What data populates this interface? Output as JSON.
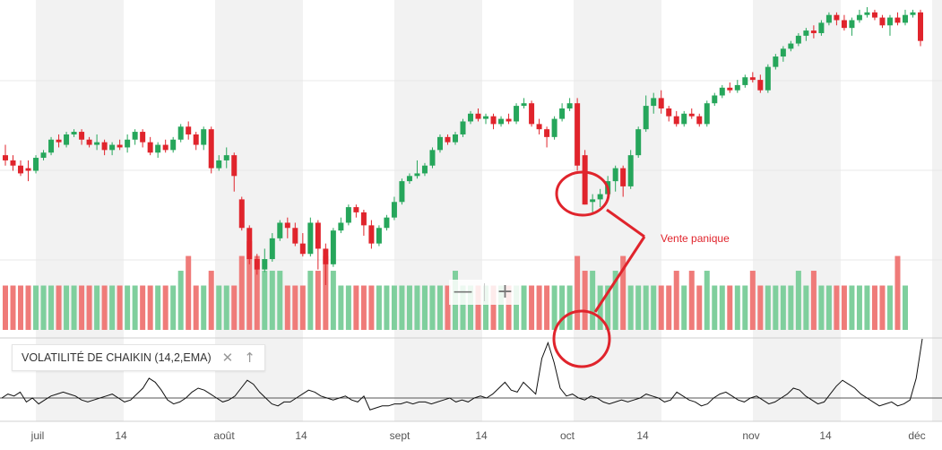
{
  "colors": {
    "up": "#26a65b",
    "down": "#e0242c",
    "vol_up": "#7fcf9d",
    "vol_down": "#ef7b79",
    "annotation": "#e0242c",
    "band": "#f2f2f2",
    "line": "#111111"
  },
  "zoom": {
    "minus_label": "—",
    "plus_label": "+",
    "minus_icon": "minus-icon",
    "plus_icon": "plus-icon"
  },
  "indicator": {
    "label": "VOLATILITÉ DE CHAIKIN (14,2,EMA)",
    "close_icon": "close-icon",
    "up_icon": "arrow-up-icon"
  },
  "annotation": {
    "text": "Vente panique"
  },
  "chart_data": [
    {
      "type": "candlestick",
      "x_labels": [
        "juil",
        "14",
        "août",
        "14",
        "sept",
        "14",
        "oct",
        "14",
        "nov",
        "14",
        "déc"
      ],
      "candles": [
        [
          62,
          60,
          66,
          58
        ],
        [
          60,
          58,
          62,
          56
        ],
        [
          58,
          55,
          60,
          54
        ],
        [
          57,
          56,
          60,
          52
        ],
        [
          56,
          61,
          62,
          55
        ],
        [
          61,
          63,
          64,
          60
        ],
        [
          63,
          68,
          69,
          62
        ],
        [
          68,
          67,
          70,
          65
        ],
        [
          66,
          70,
          71,
          65
        ],
        [
          70,
          71,
          72,
          69
        ],
        [
          71,
          68,
          72,
          66
        ],
        [
          68,
          66,
          69,
          65
        ],
        [
          66,
          67,
          70,
          64
        ],
        [
          67,
          64,
          68,
          62
        ],
        [
          64,
          66,
          67,
          62
        ],
        [
          66,
          65,
          68,
          64
        ],
        [
          65,
          68,
          70,
          63
        ],
        [
          68,
          71,
          72,
          66
        ],
        [
          71,
          67,
          72,
          65
        ],
        [
          67,
          63,
          69,
          62
        ],
        [
          63,
          66,
          67,
          61
        ],
        [
          66,
          64,
          68,
          63
        ],
        [
          64,
          68,
          69,
          63
        ],
        [
          68,
          73,
          74,
          67
        ],
        [
          73,
          70,
          75,
          68
        ],
        [
          70,
          66,
          71,
          64
        ],
        [
          66,
          72,
          73,
          64
        ],
        [
          72,
          57,
          73,
          55
        ],
        [
          57,
          60,
          62,
          56
        ],
        [
          60,
          62,
          65,
          57
        ],
        [
          62,
          54,
          63,
          48
        ],
        [
          45,
          34,
          46,
          33
        ],
        [
          34,
          22,
          35,
          20
        ],
        [
          22,
          18,
          24,
          16
        ],
        [
          18,
          22,
          26,
          17
        ],
        [
          22,
          30,
          32,
          21
        ],
        [
          30,
          36,
          37,
          29
        ],
        [
          36,
          34,
          38,
          30
        ],
        [
          34,
          28,
          36,
          27
        ],
        [
          28,
          24,
          32,
          23
        ],
        [
          24,
          36,
          38,
          23
        ],
        [
          36,
          26,
          37,
          18
        ],
        [
          26,
          20,
          28,
          12
        ],
        [
          20,
          33,
          34,
          19
        ],
        [
          33,
          36,
          38,
          32
        ],
        [
          36,
          42,
          43,
          35
        ],
        [
          42,
          40,
          43,
          38
        ],
        [
          40,
          35,
          41,
          31
        ],
        [
          35,
          28,
          37,
          26
        ],
        [
          28,
          34,
          35,
          27
        ],
        [
          34,
          38,
          39,
          33
        ],
        [
          38,
          44,
          46,
          37
        ],
        [
          44,
          52,
          53,
          43
        ],
        [
          52,
          54,
          55,
          51
        ],
        [
          54,
          55,
          60,
          53
        ],
        [
          55,
          58,
          59,
          54
        ],
        [
          58,
          64,
          65,
          57
        ],
        [
          64,
          69,
          70,
          63
        ],
        [
          69,
          67,
          70,
          66
        ],
        [
          67,
          70,
          71,
          66
        ],
        [
          70,
          75,
          76,
          69
        ],
        [
          75,
          78,
          79,
          74
        ],
        [
          78,
          76,
          80,
          75
        ],
        [
          76,
          77,
          78,
          74
        ],
        [
          77,
          74,
          78,
          72
        ],
        [
          74,
          76,
          77,
          73
        ],
        [
          76,
          75,
          78,
          74
        ],
        [
          75,
          81,
          82,
          74
        ],
        [
          81,
          82,
          84,
          80
        ],
        [
          82,
          74,
          83,
          73
        ],
        [
          74,
          72,
          76,
          70
        ],
        [
          72,
          69,
          73,
          65
        ],
        [
          69,
          76,
          77,
          68
        ],
        [
          76,
          80,
          82,
          75
        ],
        [
          80,
          82,
          84,
          79
        ],
        [
          82,
          58,
          84,
          56
        ],
        [
          62,
          43,
          64,
          43
        ],
        [
          44,
          45,
          47,
          40
        ],
        [
          45,
          47,
          49,
          42
        ],
        [
          47,
          52,
          54,
          46
        ],
        [
          52,
          57,
          58,
          48
        ],
        [
          57,
          50,
          58,
          46
        ],
        [
          50,
          62,
          64,
          49
        ],
        [
          62,
          72,
          73,
          61
        ],
        [
          72,
          81,
          85,
          71
        ],
        [
          81,
          84,
          86,
          78
        ],
        [
          84,
          80,
          87,
          78
        ],
        [
          80,
          77,
          81,
          75
        ],
        [
          77,
          74,
          79,
          73
        ],
        [
          74,
          78,
          79,
          73
        ],
        [
          78,
          77,
          80,
          76
        ],
        [
          77,
          74,
          78,
          73
        ],
        [
          74,
          82,
          83,
          73
        ],
        [
          82,
          85,
          86,
          81
        ],
        [
          85,
          88,
          89,
          84
        ],
        [
          88,
          87,
          90,
          86
        ],
        [
          87,
          89,
          91,
          86
        ],
        [
          89,
          92,
          93,
          88
        ],
        [
          92,
          91,
          94,
          90
        ],
        [
          91,
          87,
          93,
          86
        ],
        [
          87,
          96,
          97,
          86
        ],
        [
          96,
          100,
          101,
          95
        ],
        [
          100,
          103,
          104,
          98
        ],
        [
          103,
          105,
          106,
          102
        ],
        [
          105,
          108,
          109,
          104
        ],
        [
          108,
          110,
          111,
          106
        ],
        [
          110,
          109,
          112,
          107
        ],
        [
          109,
          113,
          114,
          108
        ],
        [
          113,
          116,
          117,
          112
        ],
        [
          116,
          114,
          117,
          112
        ],
        [
          114,
          111,
          116,
          110
        ],
        [
          111,
          114,
          115,
          108
        ],
        [
          114,
          116,
          118,
          113
        ],
        [
          116,
          117,
          119,
          115
        ],
        [
          117,
          115,
          118,
          114
        ],
        [
          115,
          112,
          116,
          111
        ],
        [
          112,
          115,
          116,
          108
        ],
        [
          115,
          113,
          117,
          112
        ],
        [
          113,
          116,
          118,
          112
        ],
        [
          116,
          117,
          118,
          115
        ],
        [
          117,
          106,
          118,
          104
        ]
      ],
      "volume": [
        3,
        3,
        3,
        3,
        3,
        3,
        3,
        3,
        3,
        3,
        3,
        3,
        3,
        3,
        3,
        3,
        3,
        3,
        3,
        3,
        3,
        3,
        3,
        4,
        5,
        3,
        3,
        4,
        3,
        3,
        3,
        5,
        6,
        5,
        4,
        4,
        4,
        3,
        3,
        3,
        4,
        4,
        5,
        4,
        3,
        3,
        3,
        3,
        3,
        3,
        3,
        3,
        3,
        3,
        3,
        3,
        3,
        3,
        3,
        4,
        3,
        3,
        3,
        3,
        3,
        3,
        3,
        3,
        3,
        3,
        3,
        3,
        3,
        3,
        3,
        5,
        4,
        4,
        3,
        3,
        4,
        5,
        3,
        3,
        3,
        3,
        3,
        3,
        4,
        3,
        4,
        3,
        4,
        3,
        3,
        3,
        3,
        3,
        4,
        3,
        3,
        3,
        3,
        3,
        4,
        3,
        4,
        3,
        3,
        3,
        3,
        3,
        3,
        3,
        3,
        3,
        3,
        5,
        3
      ]
    },
    {
      "type": "line",
      "name": "VOLATILITÉ DE CHAIKIN (14,2,EMA)",
      "baseline": 0,
      "values": [
        0,
        2,
        1,
        3,
        -2,
        0,
        -3,
        -1,
        1,
        2,
        3,
        2,
        1,
        -1,
        -2,
        -1,
        0,
        1,
        2,
        0,
        -2,
        -1,
        2,
        5,
        10,
        8,
        4,
        -1,
        -3,
        -2,
        0,
        3,
        5,
        4,
        2,
        0,
        -2,
        -1,
        1,
        5,
        9,
        7,
        3,
        0,
        -3,
        -4,
        -2,
        -2,
        0,
        2,
        4,
        3,
        1,
        0,
        -1,
        0,
        1,
        -1,
        -2,
        1,
        -6,
        -5,
        -4,
        -4,
        -3,
        -3,
        -2,
        -3,
        -2,
        -2,
        -3,
        -2,
        -1,
        0,
        -2,
        -1,
        -2,
        0,
        1,
        0,
        2,
        5,
        8,
        4,
        3,
        8,
        5,
        2,
        20,
        28,
        18,
        5,
        1,
        2,
        0,
        -1,
        1,
        0,
        -2,
        -3,
        -2,
        -1,
        -2,
        -1,
        0,
        2,
        1,
        0,
        -2,
        -1,
        3,
        1,
        -1,
        -2,
        -4,
        -3,
        0,
        2,
        3,
        1,
        -1,
        -2,
        0,
        1,
        -1,
        -3,
        -2,
        0,
        2,
        5,
        4,
        1,
        -1,
        -3,
        -2,
        2,
        6,
        9,
        7,
        5,
        2,
        0,
        -2,
        -4,
        -3,
        -2,
        -4,
        -3,
        -1,
        10,
        30
      ]
    }
  ]
}
